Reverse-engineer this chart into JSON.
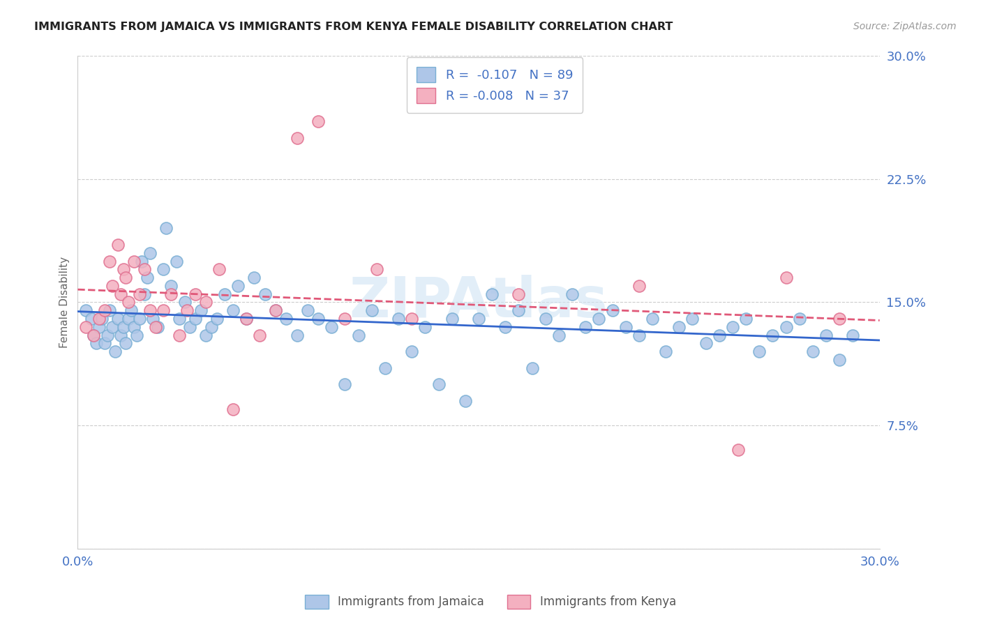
{
  "title": "IMMIGRANTS FROM JAMAICA VS IMMIGRANTS FROM KENYA FEMALE DISABILITY CORRELATION CHART",
  "source": "Source: ZipAtlas.com",
  "ylabel": "Female Disability",
  "xlim": [
    0.0,
    0.3
  ],
  "ylim": [
    0.0,
    0.3
  ],
  "xticks": [
    0.0,
    0.05,
    0.1,
    0.15,
    0.2,
    0.25,
    0.3
  ],
  "xticklabels": [
    "0.0%",
    "",
    "",
    "",
    "",
    "",
    "30.0%"
  ],
  "yticks": [
    0.0,
    0.075,
    0.15,
    0.225,
    0.3
  ],
  "yticklabels_right": [
    "",
    "7.5%",
    "15.0%",
    "22.5%",
    "30.0%"
  ],
  "grid_color": "#cccccc",
  "jamaica_color": "#aec6e8",
  "kenya_color": "#f4b0c0",
  "jamaica_edge": "#7aafd4",
  "kenya_edge": "#e07090",
  "trendline_jamaica_color": "#3366cc",
  "trendline_kenya_color": "#e05878",
  "legend_r_jamaica": "R =  -0.107   N = 89",
  "legend_r_kenya": "R = -0.008   N = 37",
  "legend_label_jamaica": "Immigrants from Jamaica",
  "legend_label_kenya": "Immigrants from Kenya",
  "watermark": "ZIPAtlas",
  "jamaica_x": [
    0.003,
    0.005,
    0.006,
    0.007,
    0.008,
    0.009,
    0.01,
    0.011,
    0.012,
    0.013,
    0.014,
    0.015,
    0.016,
    0.017,
    0.018,
    0.019,
    0.02,
    0.021,
    0.022,
    0.023,
    0.024,
    0.025,
    0.026,
    0.027,
    0.028,
    0.03,
    0.032,
    0.033,
    0.035,
    0.037,
    0.038,
    0.04,
    0.042,
    0.044,
    0.046,
    0.048,
    0.05,
    0.052,
    0.055,
    0.058,
    0.06,
    0.063,
    0.066,
    0.07,
    0.074,
    0.078,
    0.082,
    0.086,
    0.09,
    0.095,
    0.1,
    0.105,
    0.11,
    0.115,
    0.12,
    0.125,
    0.13,
    0.135,
    0.14,
    0.145,
    0.15,
    0.155,
    0.16,
    0.165,
    0.17,
    0.175,
    0.18,
    0.185,
    0.19,
    0.195,
    0.2,
    0.205,
    0.21,
    0.215,
    0.22,
    0.225,
    0.23,
    0.235,
    0.24,
    0.245,
    0.25,
    0.255,
    0.26,
    0.265,
    0.27,
    0.275,
    0.28,
    0.285,
    0.29
  ],
  "jamaica_y": [
    0.145,
    0.14,
    0.13,
    0.125,
    0.135,
    0.14,
    0.125,
    0.13,
    0.145,
    0.135,
    0.12,
    0.14,
    0.13,
    0.135,
    0.125,
    0.14,
    0.145,
    0.135,
    0.13,
    0.14,
    0.175,
    0.155,
    0.165,
    0.18,
    0.14,
    0.135,
    0.17,
    0.195,
    0.16,
    0.175,
    0.14,
    0.15,
    0.135,
    0.14,
    0.145,
    0.13,
    0.135,
    0.14,
    0.155,
    0.145,
    0.16,
    0.14,
    0.165,
    0.155,
    0.145,
    0.14,
    0.13,
    0.145,
    0.14,
    0.135,
    0.1,
    0.13,
    0.145,
    0.11,
    0.14,
    0.12,
    0.135,
    0.1,
    0.14,
    0.09,
    0.14,
    0.155,
    0.135,
    0.145,
    0.11,
    0.14,
    0.13,
    0.155,
    0.135,
    0.14,
    0.145,
    0.135,
    0.13,
    0.14,
    0.12,
    0.135,
    0.14,
    0.125,
    0.13,
    0.135,
    0.14,
    0.12,
    0.13,
    0.135,
    0.14,
    0.12,
    0.13,
    0.115,
    0.13
  ],
  "kenya_x": [
    0.003,
    0.006,
    0.008,
    0.01,
    0.012,
    0.013,
    0.015,
    0.016,
    0.017,
    0.018,
    0.019,
    0.021,
    0.023,
    0.025,
    0.027,
    0.029,
    0.032,
    0.035,
    0.038,
    0.041,
    0.044,
    0.048,
    0.053,
    0.058,
    0.063,
    0.068,
    0.074,
    0.082,
    0.09,
    0.1,
    0.112,
    0.125,
    0.165,
    0.21,
    0.247,
    0.265,
    0.285
  ],
  "kenya_y": [
    0.135,
    0.13,
    0.14,
    0.145,
    0.175,
    0.16,
    0.185,
    0.155,
    0.17,
    0.165,
    0.15,
    0.175,
    0.155,
    0.17,
    0.145,
    0.135,
    0.145,
    0.155,
    0.13,
    0.145,
    0.155,
    0.15,
    0.17,
    0.085,
    0.14,
    0.13,
    0.145,
    0.25,
    0.26,
    0.14,
    0.17,
    0.14,
    0.155,
    0.16,
    0.06,
    0.165,
    0.14
  ]
}
